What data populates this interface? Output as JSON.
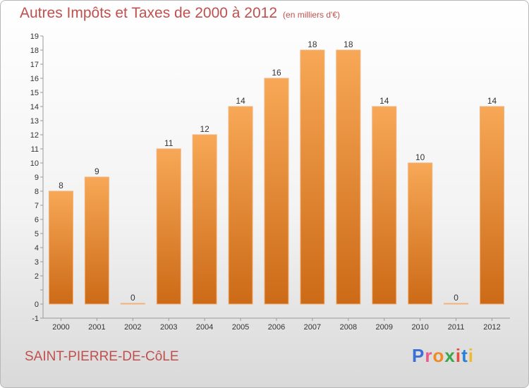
{
  "title": "Autres Impôts et Taxes de 2000 à 2012",
  "subtitle": "(en milliers d'€)",
  "location": "SAINT-PIERRE-DE-CôLE",
  "logo": {
    "text": "Proxiti",
    "letter_colors": [
      "#3b6fd6",
      "#e85a8b",
      "#f08a24",
      "#38a84a",
      "#e84c3d",
      "#2b7fd4",
      "#f0b92c"
    ]
  },
  "colors": {
    "bar_top": "#f7a856",
    "bar_bottom": "#cc6a17",
    "text_accent": "#c0504d"
  },
  "chart_data": {
    "type": "bar",
    "title": "Autres Impôts et Taxes de 2000 à 2012",
    "subtitle": "(en milliers d'€)",
    "categories": [
      "2000",
      "2001",
      "2002",
      "2003",
      "2004",
      "2005",
      "2006",
      "2007",
      "2008",
      "2009",
      "2010",
      "2011",
      "2012"
    ],
    "values": [
      8,
      9,
      0,
      11,
      12,
      14,
      16,
      18,
      18,
      14,
      10,
      0,
      14
    ],
    "ylim": [
      -1,
      19
    ],
    "yticks": [
      -1,
      0,
      1,
      2,
      3,
      4,
      5,
      6,
      7,
      8,
      9,
      10,
      11,
      12,
      13,
      14,
      15,
      16,
      17,
      18,
      19
    ],
    "ytick_labels": [
      "-1",
      "0",
      "",
      "2",
      "3",
      "4",
      "5",
      "6",
      "7",
      "8",
      "9",
      "10",
      "11",
      "12",
      "13",
      "14",
      "15",
      "16",
      "17",
      "18",
      "19"
    ],
    "grid": false,
    "legend": "none"
  }
}
